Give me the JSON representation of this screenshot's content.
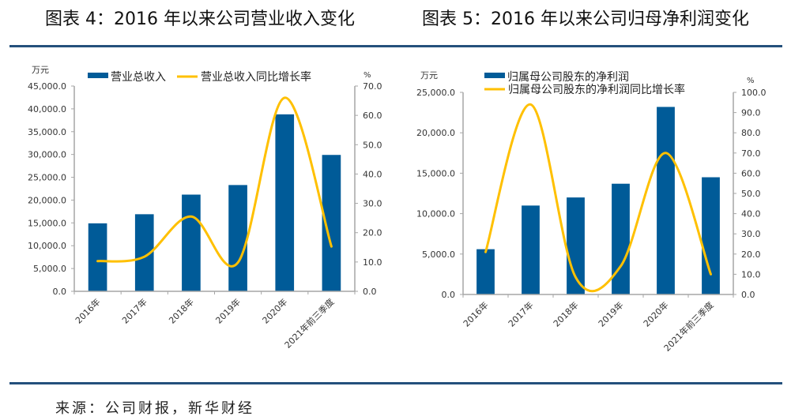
{
  "titles": {
    "left": "图表 4：2016 年以来公司营业收入变化",
    "right": "图表 5：2016 年以来公司归母净利润变化"
  },
  "source": "来源：公司财报，新华财经",
  "colors": {
    "bar": "#005b98",
    "line": "#ffc000",
    "axis": "#a6a6a6",
    "rule": "#24507c"
  },
  "chart_data": [
    {
      "type": "bar+line",
      "title": "图表 4：2016 年以来公司营业收入变化",
      "left_unit": "万元",
      "right_unit": "%",
      "categories": [
        "2016年",
        "2017年",
        "2018年",
        "2019年",
        "2020年",
        "2021年前三季度"
      ],
      "series": [
        {
          "name": "营业总收入",
          "type": "bar",
          "axis": "left",
          "values": [
            14900,
            16900,
            21200,
            23300,
            38800,
            29900
          ]
        },
        {
          "name": "营业总收入同比增长率",
          "type": "line",
          "axis": "right",
          "values": [
            10.3,
            11.8,
            25.5,
            9.8,
            66.0,
            15.3
          ]
        }
      ],
      "left_ylim": [
        0,
        45000
      ],
      "left_ticks": [
        "0.0",
        "5,000.0",
        "10,000.0",
        "15,000.0",
        "20,000.0",
        "25,000.0",
        "30,000.0",
        "35,000.0",
        "40,000.0",
        "45,000.0"
      ],
      "right_ylim": [
        0,
        70
      ],
      "right_ticks": [
        "0.0",
        "10.0",
        "20.0",
        "30.0",
        "40.0",
        "50.0",
        "60.0",
        "70.0"
      ],
      "legend": "top",
      "grid": false
    },
    {
      "type": "bar+line",
      "title": "图表 5：2016 年以来公司归母净利润变化",
      "left_unit": "万元",
      "right_unit": "%",
      "categories": [
        "2016年",
        "2017年",
        "2018年",
        "2019年",
        "2020年",
        "2021年前三季度"
      ],
      "series": [
        {
          "name": "归属母公司股东的净利润",
          "type": "bar",
          "axis": "left",
          "values": [
            5600,
            11000,
            12000,
            13700,
            23200,
            14500
          ]
        },
        {
          "name": "归属母公司股东的净利润同比增长率",
          "type": "line",
          "axis": "right",
          "values": [
            21.0,
            94.0,
            8.5,
            14.0,
            70.0,
            10.0
          ]
        }
      ],
      "left_ylim": [
        0,
        25000
      ],
      "left_ticks": [
        "0.0",
        "5,000.0",
        "10,000.0",
        "15,000.0",
        "20,000.0",
        "25,000.0"
      ],
      "right_ylim": [
        0,
        100
      ],
      "right_ticks": [
        "0.0",
        "10.0",
        "20.0",
        "30.0",
        "40.0",
        "50.0",
        "60.0",
        "70.0",
        "80.0",
        "90.0",
        "100.0"
      ],
      "legend": "top",
      "grid": false
    }
  ]
}
